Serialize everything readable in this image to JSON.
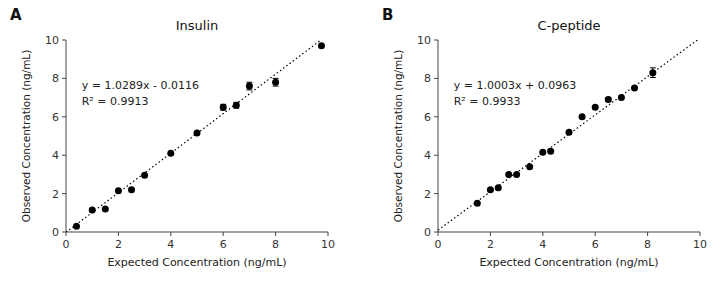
{
  "chart_data": [
    {
      "type": "scatter",
      "title": "Insulin",
      "panel_label": "A",
      "x": [
        0.4,
        1.0,
        1.5,
        2.0,
        2.5,
        3.0,
        4.0,
        5.0,
        6.0,
        6.5,
        7.0,
        8.0,
        9.75
      ],
      "values": [
        0.3,
        1.15,
        1.2,
        2.15,
        2.2,
        2.95,
        4.1,
        5.15,
        6.5,
        6.6,
        7.6,
        7.8,
        9.7
      ],
      "errors": [
        0.0,
        0.0,
        0.0,
        0.0,
        0.0,
        0.0,
        0.0,
        0.0,
        0.15,
        0.15,
        0.2,
        0.2,
        0.0
      ],
      "color": "#000000",
      "fit": {
        "slope": 1.0289,
        "intercept": -0.0116,
        "color": "#000000",
        "line_style": "dotted"
      },
      "annotations": [
        "y = 1.0289x - 0.0116",
        "R² = 0.9913"
      ],
      "xlabel": "Expected Concentration (ng/mL)",
      "ylabel": "Observed Concentration (ng/mL)",
      "xlim": [
        0,
        10
      ],
      "ylim": [
        0,
        10
      ],
      "xticks": [
        0,
        2,
        4,
        6,
        8,
        10
      ],
      "yticks": [
        0,
        2,
        4,
        6,
        8,
        10
      ],
      "grid": false
    },
    {
      "type": "scatter",
      "title": "C-peptide",
      "panel_label": "B",
      "x": [
        1.5,
        2.0,
        2.3,
        2.7,
        3.0,
        3.5,
        4.0,
        4.3,
        5.0,
        5.5,
        6.0,
        6.5,
        7.0,
        7.5,
        8.2
      ],
      "values": [
        1.5,
        2.2,
        2.3,
        3.0,
        3.0,
        3.4,
        4.15,
        4.2,
        5.2,
        6.0,
        6.5,
        6.9,
        7.0,
        7.5,
        8.3
      ],
      "errors": [
        0.0,
        0.0,
        0.0,
        0.0,
        0.0,
        0.0,
        0.0,
        0.0,
        0.0,
        0.0,
        0.0,
        0.1,
        0.0,
        0.0,
        0.25
      ],
      "color": "#000000",
      "fit": {
        "slope": 1.0003,
        "intercept": 0.0963,
        "color": "#000000",
        "line_style": "dotted"
      },
      "annotations": [
        "y = 1.0003x + 0.0963",
        "R² = 0.9933"
      ],
      "xlabel": "Expected Concentration (ng/mL)",
      "ylabel": "Observed Concentration (ng/mL)",
      "xlim": [
        0,
        10
      ],
      "ylim": [
        0,
        10
      ],
      "xticks": [
        0,
        2,
        4,
        6,
        8,
        10
      ],
      "yticks": [
        0,
        2,
        4,
        6,
        8,
        10
      ],
      "grid": false
    }
  ]
}
